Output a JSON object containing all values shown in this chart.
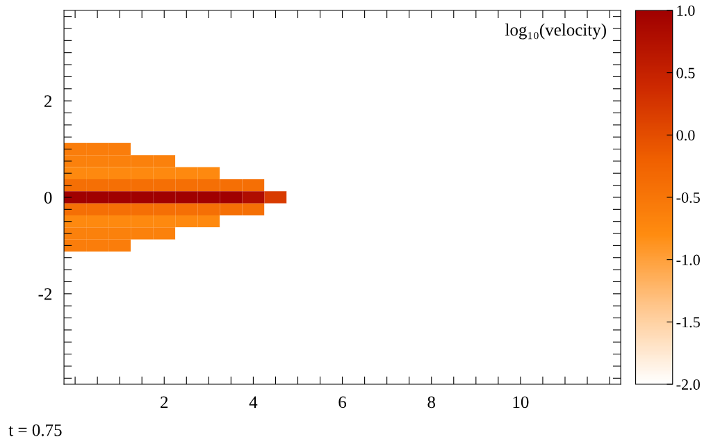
{
  "chart_data": {
    "type": "heatmap",
    "title": "log₁₀(velocity)",
    "annotations": [
      "t = 0.75"
    ],
    "categories": [
      null,
      null,
      null,
      null,
      "2",
      null,
      null,
      null,
      "4",
      null,
      null,
      null,
      "6",
      null,
      null,
      null,
      "8",
      null,
      null,
      null,
      "10",
      null,
      null,
      null,
      null
    ],
    "y_categories": [
      null,
      null,
      null,
      null,
      null,
      null,
      null,
      "2",
      null,
      null,
      null,
      null,
      null,
      null,
      null,
      "0",
      null,
      null,
      null,
      null,
      null,
      null,
      null,
      "-2",
      null,
      null,
      null,
      null,
      null,
      null,
      null
    ],
    "cells": [
      [
        -2,
        -2,
        -2,
        -2,
        -2,
        -2,
        -2,
        -2,
        -2,
        -2,
        -2,
        -2,
        -2,
        -2,
        -2,
        -2,
        -2,
        -2,
        -2,
        -2,
        -2,
        -2,
        -2,
        -2,
        -2
      ],
      [
        -2,
        -2,
        -2,
        -2,
        -2,
        -2,
        -2,
        -2,
        -2,
        -2,
        -2,
        -2,
        -2,
        -2,
        -2,
        -2,
        -2,
        -2,
        -2,
        -2,
        -2,
        -2,
        -2,
        -2,
        -2
      ],
      [
        -2,
        -2,
        -2,
        -2,
        -2,
        -2,
        -2,
        -2,
        -2,
        -2,
        -2,
        -2,
        -2,
        -2,
        -2,
        -2,
        -2,
        -2,
        -2,
        -2,
        -2,
        -2,
        -2,
        -2,
        -2
      ],
      [
        -2,
        -2,
        -2,
        -2,
        -2,
        -2,
        -2,
        -2,
        -2,
        -2,
        -2,
        -2,
        -2,
        -2,
        -2,
        -2,
        -2,
        -2,
        -2,
        -2,
        -2,
        -2,
        -2,
        -2,
        -2
      ],
      [
        -2,
        -2,
        -2,
        -2,
        -2,
        -2,
        -2,
        -2,
        -2,
        -2,
        -2,
        -2,
        -2,
        -2,
        -2,
        -2,
        -2,
        -2,
        -2,
        -2,
        -2,
        -2,
        -2,
        -2,
        -2
      ],
      [
        -2,
        -2,
        -2,
        -2,
        -2,
        -2,
        -2,
        -2,
        -2,
        -2,
        -2,
        -2,
        -2,
        -2,
        -2,
        -2,
        -2,
        -2,
        -2,
        -2,
        -2,
        -2,
        -2,
        -2,
        -2
      ],
      [
        -2,
        -2,
        -2,
        -2,
        -2,
        -2,
        -2,
        -2,
        -2,
        -2,
        -2,
        -2,
        -2,
        -2,
        -2,
        -2,
        -2,
        -2,
        -2,
        -2,
        -2,
        -2,
        -2,
        -2,
        -2
      ],
      [
        -2,
        -2,
        -2,
        -2,
        -2,
        -2,
        -2,
        -2,
        -2,
        -2,
        -2,
        -2,
        -2,
        -2,
        -2,
        -2,
        -2,
        -2,
        -2,
        -2,
        -2,
        -2,
        -2,
        -2,
        -2
      ],
      [
        -2,
        -2,
        -2,
        -2,
        -2,
        -2,
        -2,
        -2,
        -2,
        -2,
        -2,
        -2,
        -2,
        -2,
        -2,
        -2,
        -2,
        -2,
        -2,
        -2,
        -2,
        -2,
        -2,
        -2,
        -2
      ],
      [
        -2,
        -2,
        -2,
        -2,
        -2,
        -2,
        -2,
        -2,
        -2,
        -2,
        -2,
        -2,
        -2,
        -2,
        -2,
        -2,
        -2,
        -2,
        -2,
        -2,
        -2,
        -2,
        -2,
        -2,
        -2
      ],
      [
        -2,
        -2,
        -2,
        -2,
        -2,
        -2,
        -2,
        -2,
        -2,
        -2,
        -2,
        -2,
        -2,
        -2,
        -2,
        -2,
        -2,
        -2,
        -2,
        -2,
        -2,
        -2,
        -2,
        -2,
        -2
      ],
      [
        -0.6,
        -0.6,
        -0.6,
        -2,
        -2,
        -2,
        -2,
        -2,
        -2,
        -2,
        -2,
        -2,
        -2,
        -2,
        -2,
        -2,
        -2,
        -2,
        -2,
        -2,
        -2,
        -2,
        -2,
        -2,
        -2
      ],
      [
        -0.65,
        -0.65,
        -0.65,
        -0.65,
        -0.65,
        -2,
        -2,
        -2,
        -2,
        -2,
        -2,
        -2,
        -2,
        -2,
        -2,
        -2,
        -2,
        -2,
        -2,
        -2,
        -2,
        -2,
        -2,
        -2,
        -2
      ],
      [
        -0.75,
        -0.75,
        -0.75,
        -0.75,
        -0.75,
        -0.75,
        -0.75,
        -2,
        -2,
        -2,
        -2,
        -2,
        -2,
        -2,
        -2,
        -2,
        -2,
        -2,
        -2,
        -2,
        -2,
        -2,
        -2,
        -2,
        -2
      ],
      [
        -0.4,
        -0.4,
        -0.4,
        -0.4,
        -0.4,
        -0.4,
        -0.4,
        -0.4,
        -0.4,
        -2,
        -2,
        -2,
        -2,
        -2,
        -2,
        -2,
        -2,
        -2,
        -2,
        -2,
        -2,
        -2,
        -2,
        -2,
        -2
      ],
      [
        1.0,
        1.0,
        1.0,
        1.0,
        1.0,
        1.0,
        1.0,
        1.0,
        0.8,
        0.2,
        -2,
        -2,
        -2,
        -2,
        -2,
        -2,
        -2,
        -2,
        -2,
        -2,
        -2,
        -2,
        -2,
        -2,
        -2
      ],
      [
        -0.4,
        -0.4,
        -0.4,
        -0.4,
        -0.4,
        -0.4,
        -0.4,
        -0.4,
        -0.4,
        -2,
        -2,
        -2,
        -2,
        -2,
        -2,
        -2,
        -2,
        -2,
        -2,
        -2,
        -2,
        -2,
        -2,
        -2,
        -2
      ],
      [
        -0.75,
        -0.75,
        -0.75,
        -0.75,
        -0.75,
        -0.75,
        -0.75,
        -2,
        -2,
        -2,
        -2,
        -2,
        -2,
        -2,
        -2,
        -2,
        -2,
        -2,
        -2,
        -2,
        -2,
        -2,
        -2,
        -2,
        -2
      ],
      [
        -0.65,
        -0.65,
        -0.65,
        -0.65,
        -0.65,
        -2,
        -2,
        -2,
        -2,
        -2,
        -2,
        -2,
        -2,
        -2,
        -2,
        -2,
        -2,
        -2,
        -2,
        -2,
        -2,
        -2,
        -2,
        -2,
        -2
      ],
      [
        -0.6,
        -0.6,
        -0.6,
        -2,
        -2,
        -2,
        -2,
        -2,
        -2,
        -2,
        -2,
        -2,
        -2,
        -2,
        -2,
        -2,
        -2,
        -2,
        -2,
        -2,
        -2,
        -2,
        -2,
        -2,
        -2
      ],
      [
        -2,
        -2,
        -2,
        -2,
        -2,
        -2,
        -2,
        -2,
        -2,
        -2,
        -2,
        -2,
        -2,
        -2,
        -2,
        -2,
        -2,
        -2,
        -2,
        -2,
        -2,
        -2,
        -2,
        -2,
        -2
      ],
      [
        -2,
        -2,
        -2,
        -2,
        -2,
        -2,
        -2,
        -2,
        -2,
        -2,
        -2,
        -2,
        -2,
        -2,
        -2,
        -2,
        -2,
        -2,
        -2,
        -2,
        -2,
        -2,
        -2,
        -2,
        -2
      ],
      [
        -2,
        -2,
        -2,
        -2,
        -2,
        -2,
        -2,
        -2,
        -2,
        -2,
        -2,
        -2,
        -2,
        -2,
        -2,
        -2,
        -2,
        -2,
        -2,
        -2,
        -2,
        -2,
        -2,
        -2,
        -2
      ],
      [
        -2,
        -2,
        -2,
        -2,
        -2,
        -2,
        -2,
        -2,
        -2,
        -2,
        -2,
        -2,
        -2,
        -2,
        -2,
        -2,
        -2,
        -2,
        -2,
        -2,
        -2,
        -2,
        -2,
        -2,
        -2
      ],
      [
        -2,
        -2,
        -2,
        -2,
        -2,
        -2,
        -2,
        -2,
        -2,
        -2,
        -2,
        -2,
        -2,
        -2,
        -2,
        -2,
        -2,
        -2,
        -2,
        -2,
        -2,
        -2,
        -2,
        -2,
        -2
      ],
      [
        -2,
        -2,
        -2,
        -2,
        -2,
        -2,
        -2,
        -2,
        -2,
        -2,
        -2,
        -2,
        -2,
        -2,
        -2,
        -2,
        -2,
        -2,
        -2,
        -2,
        -2,
        -2,
        -2,
        -2,
        -2
      ],
      [
        -2,
        -2,
        -2,
        -2,
        -2,
        -2,
        -2,
        -2,
        -2,
        -2,
        -2,
        -2,
        -2,
        -2,
        -2,
        -2,
        -2,
        -2,
        -2,
        -2,
        -2,
        -2,
        -2,
        -2,
        -2
      ],
      [
        -2,
        -2,
        -2,
        -2,
        -2,
        -2,
        -2,
        -2,
        -2,
        -2,
        -2,
        -2,
        -2,
        -2,
        -2,
        -2,
        -2,
        -2,
        -2,
        -2,
        -2,
        -2,
        -2,
        -2,
        -2
      ],
      [
        -2,
        -2,
        -2,
        -2,
        -2,
        -2,
        -2,
        -2,
        -2,
        -2,
        -2,
        -2,
        -2,
        -2,
        -2,
        -2,
        -2,
        -2,
        -2,
        -2,
        -2,
        -2,
        -2,
        -2,
        -2
      ],
      [
        -2,
        -2,
        -2,
        -2,
        -2,
        -2,
        -2,
        -2,
        -2,
        -2,
        -2,
        -2,
        -2,
        -2,
        -2,
        -2,
        -2,
        -2,
        -2,
        -2,
        -2,
        -2,
        -2,
        -2,
        -2
      ],
      [
        -2,
        -2,
        -2,
        -2,
        -2,
        -2,
        -2,
        -2,
        -2,
        -2,
        -2,
        -2,
        -2,
        -2,
        -2,
        -2,
        -2,
        -2,
        -2,
        -2,
        -2,
        -2,
        -2,
        -2,
        -2
      ]
    ],
    "colors": [
      "#ffffff",
      "#ffc890",
      "#ff8c10",
      "#f06000",
      "#cc2800",
      "#a00000"
    ],
    "clim": [
      -2.0,
      1.0
    ],
    "cticks": [
      {
        "value": -2.0,
        "label": "-2.0"
      },
      {
        "value": -1.5,
        "label": "-1.5"
      },
      {
        "value": -1.0,
        "label": "-1.0"
      },
      {
        "value": -0.5,
        "label": "-0.5"
      },
      {
        "value": 0.0,
        "label": "0.0"
      },
      {
        "value": 0.5,
        "label": "0.5"
      },
      {
        "value": 1.0,
        "label": "1.0"
      }
    ],
    "grid": false
  }
}
